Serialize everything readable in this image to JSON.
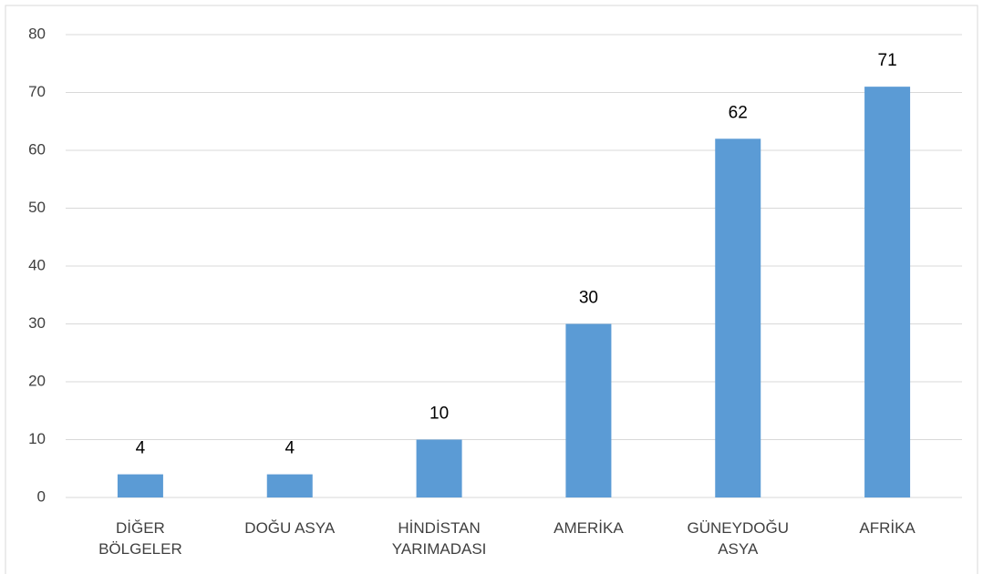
{
  "chart_data": {
    "type": "bar",
    "categories": [
      "DİĞER BÖLGELER",
      "DOĞU ASYA",
      "HİNDİSTAN YARIMADASI",
      "AMERİKA",
      "GÜNEYDOĞU ASYA",
      "AFRİKA"
    ],
    "values": [
      4,
      4,
      10,
      30,
      62,
      71
    ],
    "color": "#5b9bd5",
    "ylim": [
      0,
      80
    ],
    "yticks": [
      0,
      10,
      20,
      30,
      40,
      50,
      60,
      70,
      80
    ],
    "grid": true
  }
}
